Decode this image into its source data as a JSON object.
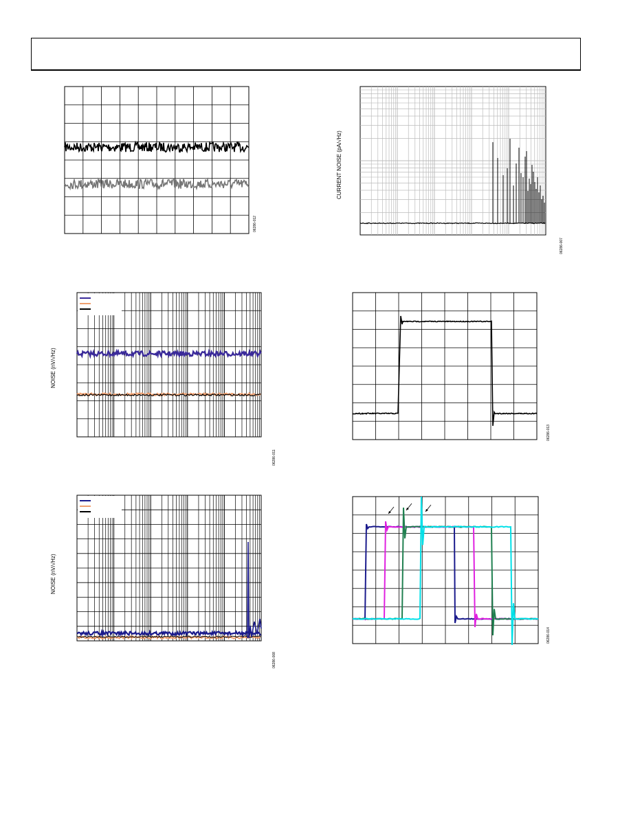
{
  "header": {
    "text": ""
  },
  "colors": {
    "navy": "#1a1a8c",
    "purple": "#3a2a9a",
    "orange": "#f0a070",
    "black": "#000000",
    "gray": "#777777",
    "magenta": "#e020e0",
    "green": "#208050",
    "cyan": "#00e0e8"
  },
  "chart_data": [
    {
      "id": "fig-left-1",
      "type": "line",
      "title": "",
      "xlabel": "",
      "ylabel": "",
      "grid": true,
      "figure_code": "06286-012",
      "series": [
        {
          "color": "#000000",
          "level_div": 3.3
        },
        {
          "color": "#777777",
          "level_div": 5.3
        }
      ],
      "divisions": {
        "x": 10,
        "y": 8
      }
    },
    {
      "id": "fig-right-1",
      "type": "line",
      "title": "",
      "xlabel": "",
      "ylabel": "CURRENT NOISE (pA/√Hz)",
      "grid": true,
      "scale": "log-log",
      "figure_code": "06286-007",
      "series": [
        {
          "color": "#000000"
        }
      ]
    },
    {
      "id": "fig-left-2",
      "type": "line",
      "title": "",
      "xlabel": "",
      "ylabel": "NOISE (nV/√Hz)",
      "grid": true,
      "scale": "log-x",
      "figure_code": "06286-011",
      "legend_position": "top-left",
      "series": [
        {
          "color": "#3a2a9a"
        },
        {
          "color": "#f0a070"
        },
        {
          "color": "#000000"
        }
      ]
    },
    {
      "id": "fig-right-2",
      "type": "line",
      "title": "",
      "xlabel": "",
      "ylabel": "",
      "grid": true,
      "figure_code": "06286-013",
      "series": [
        {
          "color": "#000000"
        }
      ],
      "divisions": {
        "x": 8,
        "y": 8
      }
    },
    {
      "id": "fig-left-3",
      "type": "line",
      "title": "",
      "xlabel": "",
      "ylabel": "NOISE (nV/√Hz)",
      "grid": true,
      "scale": "log-x",
      "figure_code": "06286-008",
      "legend_position": "top-left",
      "series": [
        {
          "color": "#1a1a8c"
        },
        {
          "color": "#f0a070"
        },
        {
          "color": "#000000"
        }
      ]
    },
    {
      "id": "fig-right-3",
      "type": "line",
      "title": "",
      "xlabel": "",
      "ylabel": "",
      "grid": true,
      "figure_code": "06286-014",
      "series": [
        {
          "color": "#1a1a8c"
        },
        {
          "color": "#e020e0"
        },
        {
          "color": "#208050"
        },
        {
          "color": "#00e0e8"
        }
      ],
      "divisions": {
        "x": 8,
        "y": 8
      }
    }
  ]
}
